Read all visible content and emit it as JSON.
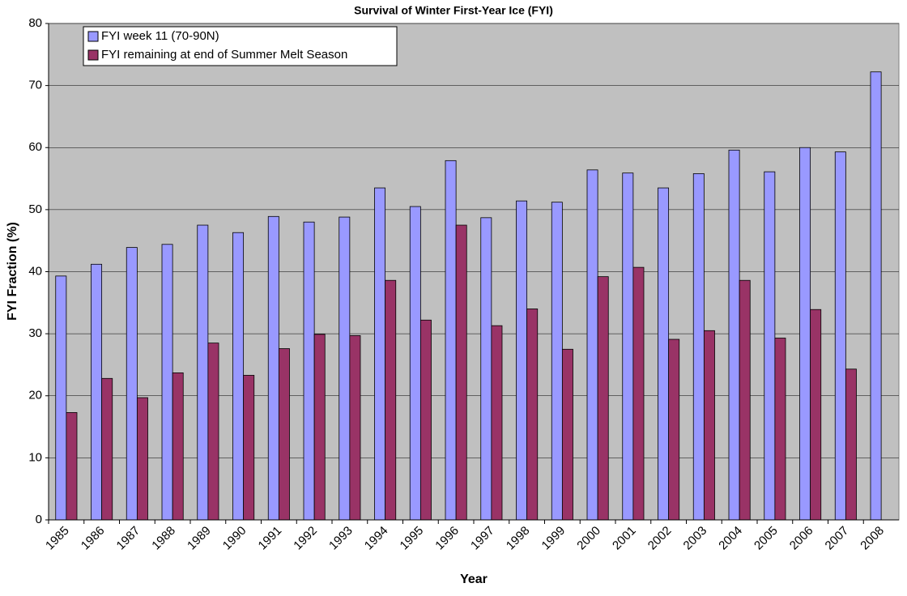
{
  "chart_data": {
    "type": "bar",
    "title": "Survival of Winter First-Year Ice (FYI)",
    "x_label": "Year",
    "y_label": "FYI Fraction (%)",
    "categories": [
      "1985",
      "1986",
      "1987",
      "1988",
      "1989",
      "1990",
      "1991",
      "1992",
      "1993",
      "1994",
      "1995",
      "1996",
      "1997",
      "1998",
      "1999",
      "2000",
      "2001",
      "2002",
      "2003",
      "2004",
      "2005",
      "2006",
      "2007",
      "2008"
    ],
    "series": [
      {
        "name": "FYI week 11 (70-90N)",
        "color": "#9999ff",
        "values": [
          39.3,
          41.2,
          43.9,
          44.4,
          47.5,
          46.3,
          48.9,
          48.0,
          48.8,
          53.5,
          50.5,
          57.9,
          48.7,
          51.4,
          51.2,
          56.4,
          55.9,
          53.5,
          55.8,
          59.6,
          56.1,
          60.0,
          59.3,
          72.2
        ]
      },
      {
        "name": "FYI remaining at end of Summer Melt Season",
        "color": "#993366",
        "values": [
          17.3,
          22.8,
          19.7,
          23.7,
          28.5,
          23.3,
          27.6,
          29.9,
          29.7,
          38.6,
          32.2,
          47.5,
          31.3,
          34.0,
          27.5,
          39.2,
          40.7,
          29.1,
          30.5,
          38.6,
          29.3,
          33.9,
          24.3,
          null
        ]
      }
    ],
    "ylim": [
      0,
      80
    ],
    "yticks": [
      0,
      10,
      20,
      30,
      40,
      50,
      60,
      70,
      80
    ],
    "grid": true,
    "legend": "upper left"
  }
}
